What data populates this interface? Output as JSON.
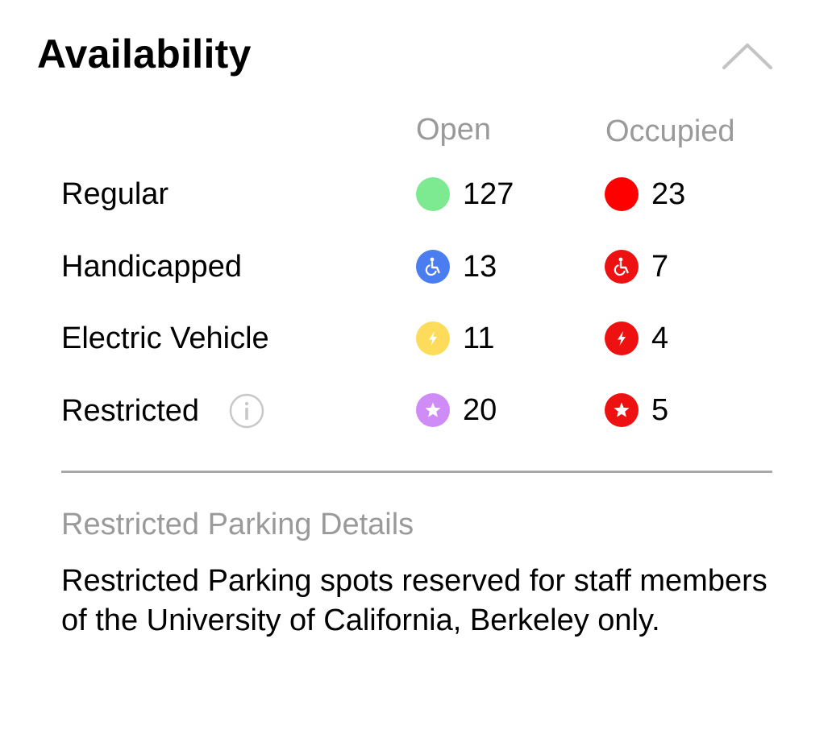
{
  "panel": {
    "title": "Availability",
    "collapse_icon": "chevron-up-icon"
  },
  "columns": {
    "open": "Open",
    "occupied": "Occupied"
  },
  "rows": [
    {
      "label": "Regular",
      "open": "127",
      "occupied": "23",
      "icon": "none",
      "open_color": "#7dea92",
      "occupied_color": "#ff0000"
    },
    {
      "label": "Handicapped",
      "open": "13",
      "occupied": "7",
      "icon": "wheelchair-icon",
      "open_color": "#4a7df0",
      "occupied_color": "#ee1111"
    },
    {
      "label": "Electric Vehicle",
      "open": "11",
      "occupied": "4",
      "icon": "lightning-bolt-icon",
      "open_color": "#fddc5c",
      "occupied_color": "#ee1111"
    },
    {
      "label": "Restricted",
      "open": "20",
      "occupied": "5",
      "icon": "star-icon",
      "info_icon": "info-icon",
      "open_color": "#cf8cf7",
      "occupied_color": "#ee1111"
    }
  ],
  "details": {
    "heading": "Restricted Parking Details",
    "text": "Restricted Parking spots reserved for staff members of the University of California, Berkeley only."
  }
}
